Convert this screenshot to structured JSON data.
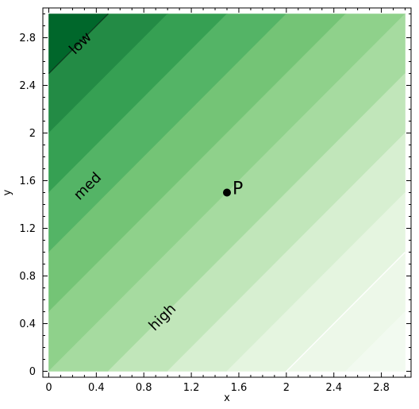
{
  "chart_data": {
    "type": "contourf",
    "xlabel": "x",
    "ylabel": "y",
    "xlim": [
      -0.05,
      3.05
    ],
    "ylim": [
      -0.05,
      3.05
    ],
    "data_extent": {
      "x": [
        0,
        3
      ],
      "y": [
        0,
        3
      ]
    },
    "surface": "z increases with (x - y)",
    "levels": [
      -3.0,
      -2.5,
      -2.0,
      -1.5,
      -1.0,
      -0.5,
      0.0,
      0.5,
      1.0,
      1.5,
      2.0,
      2.5,
      3.0
    ],
    "level_colors": [
      "#00672b",
      "#238b45",
      "#36a053",
      "#54b466",
      "#74c476",
      "#8fd18b",
      "#a6dba0",
      "#c1e6ba",
      "#d7efd1",
      "#e5f5e0",
      "#edf8e9",
      "#f2faf0"
    ],
    "x_ticks": [
      "0",
      "0.4",
      "0.8",
      "1.2",
      "1.6",
      "2",
      "2.4",
      "2.8"
    ],
    "x_tick_values": [
      0,
      0.4,
      0.8,
      1.2,
      1.6,
      2.0,
      2.4,
      2.8
    ],
    "y_ticks": [
      "0",
      "0.4",
      "0.8",
      "1.2",
      "1.6",
      "2",
      "2.4",
      "2.8"
    ],
    "y_tick_values": [
      0,
      0.4,
      0.8,
      1.2,
      1.6,
      2.0,
      2.4,
      2.8
    ],
    "contour_lines": [
      {
        "level": -2.5,
        "color": "#0d3d1f"
      },
      {
        "level": 2.0,
        "color": "#ffffff"
      }
    ],
    "annotations": [
      {
        "text": "low",
        "x": 0.27,
        "y": 2.75,
        "angle": 45
      },
      {
        "text": "med",
        "x": 0.33,
        "y": 1.55,
        "angle": 45
      },
      {
        "text": "high",
        "x": 0.96,
        "y": 0.45,
        "angle": 45
      }
    ],
    "point": {
      "label": "P",
      "x": 1.5,
      "y": 1.5
    },
    "grid": false
  }
}
